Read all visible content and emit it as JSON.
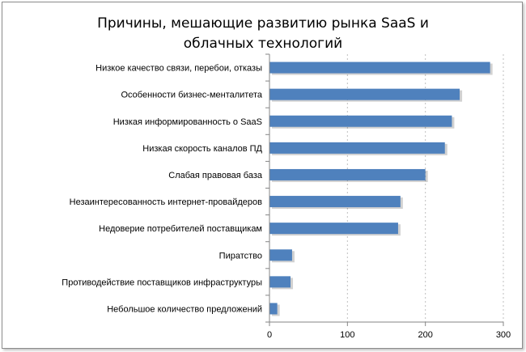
{
  "chart_data": {
    "type": "bar",
    "orientation": "horizontal",
    "title": "Причины, мешающие развитию рынка SaaS и облачных технологий",
    "title_lines": [
      "Причины, мешающие развитию рынка SaaS и",
      "облачных технологий"
    ],
    "categories": [
      "Низкое качество связи, перебои, отказы",
      "Особенности бизнес-менталитета",
      "Низкая информированность о SaaS",
      "Низкая скорость каналов ПД",
      "Слабая правовая база",
      "Незаинтересованность интернет-провайдеров",
      "Недоверие потребителей поставщикам",
      "Пиратство",
      "Противодействие поставщиков инфраструктуры",
      "Небольшое количество предложений"
    ],
    "values": [
      283,
      244,
      234,
      225,
      200,
      168,
      165,
      29,
      27,
      10
    ],
    "xlim": [
      0,
      300
    ],
    "xticks": [
      0,
      100,
      200,
      300
    ],
    "xtick_labels": [
      "0",
      "100",
      "200",
      "300"
    ],
    "xlabel": "",
    "ylabel": "",
    "grid": "vertical dashed",
    "legend": "none",
    "bar_color": "#4f81bd",
    "grid_color": "#bfbfbf",
    "axis_color": "#868686"
  }
}
